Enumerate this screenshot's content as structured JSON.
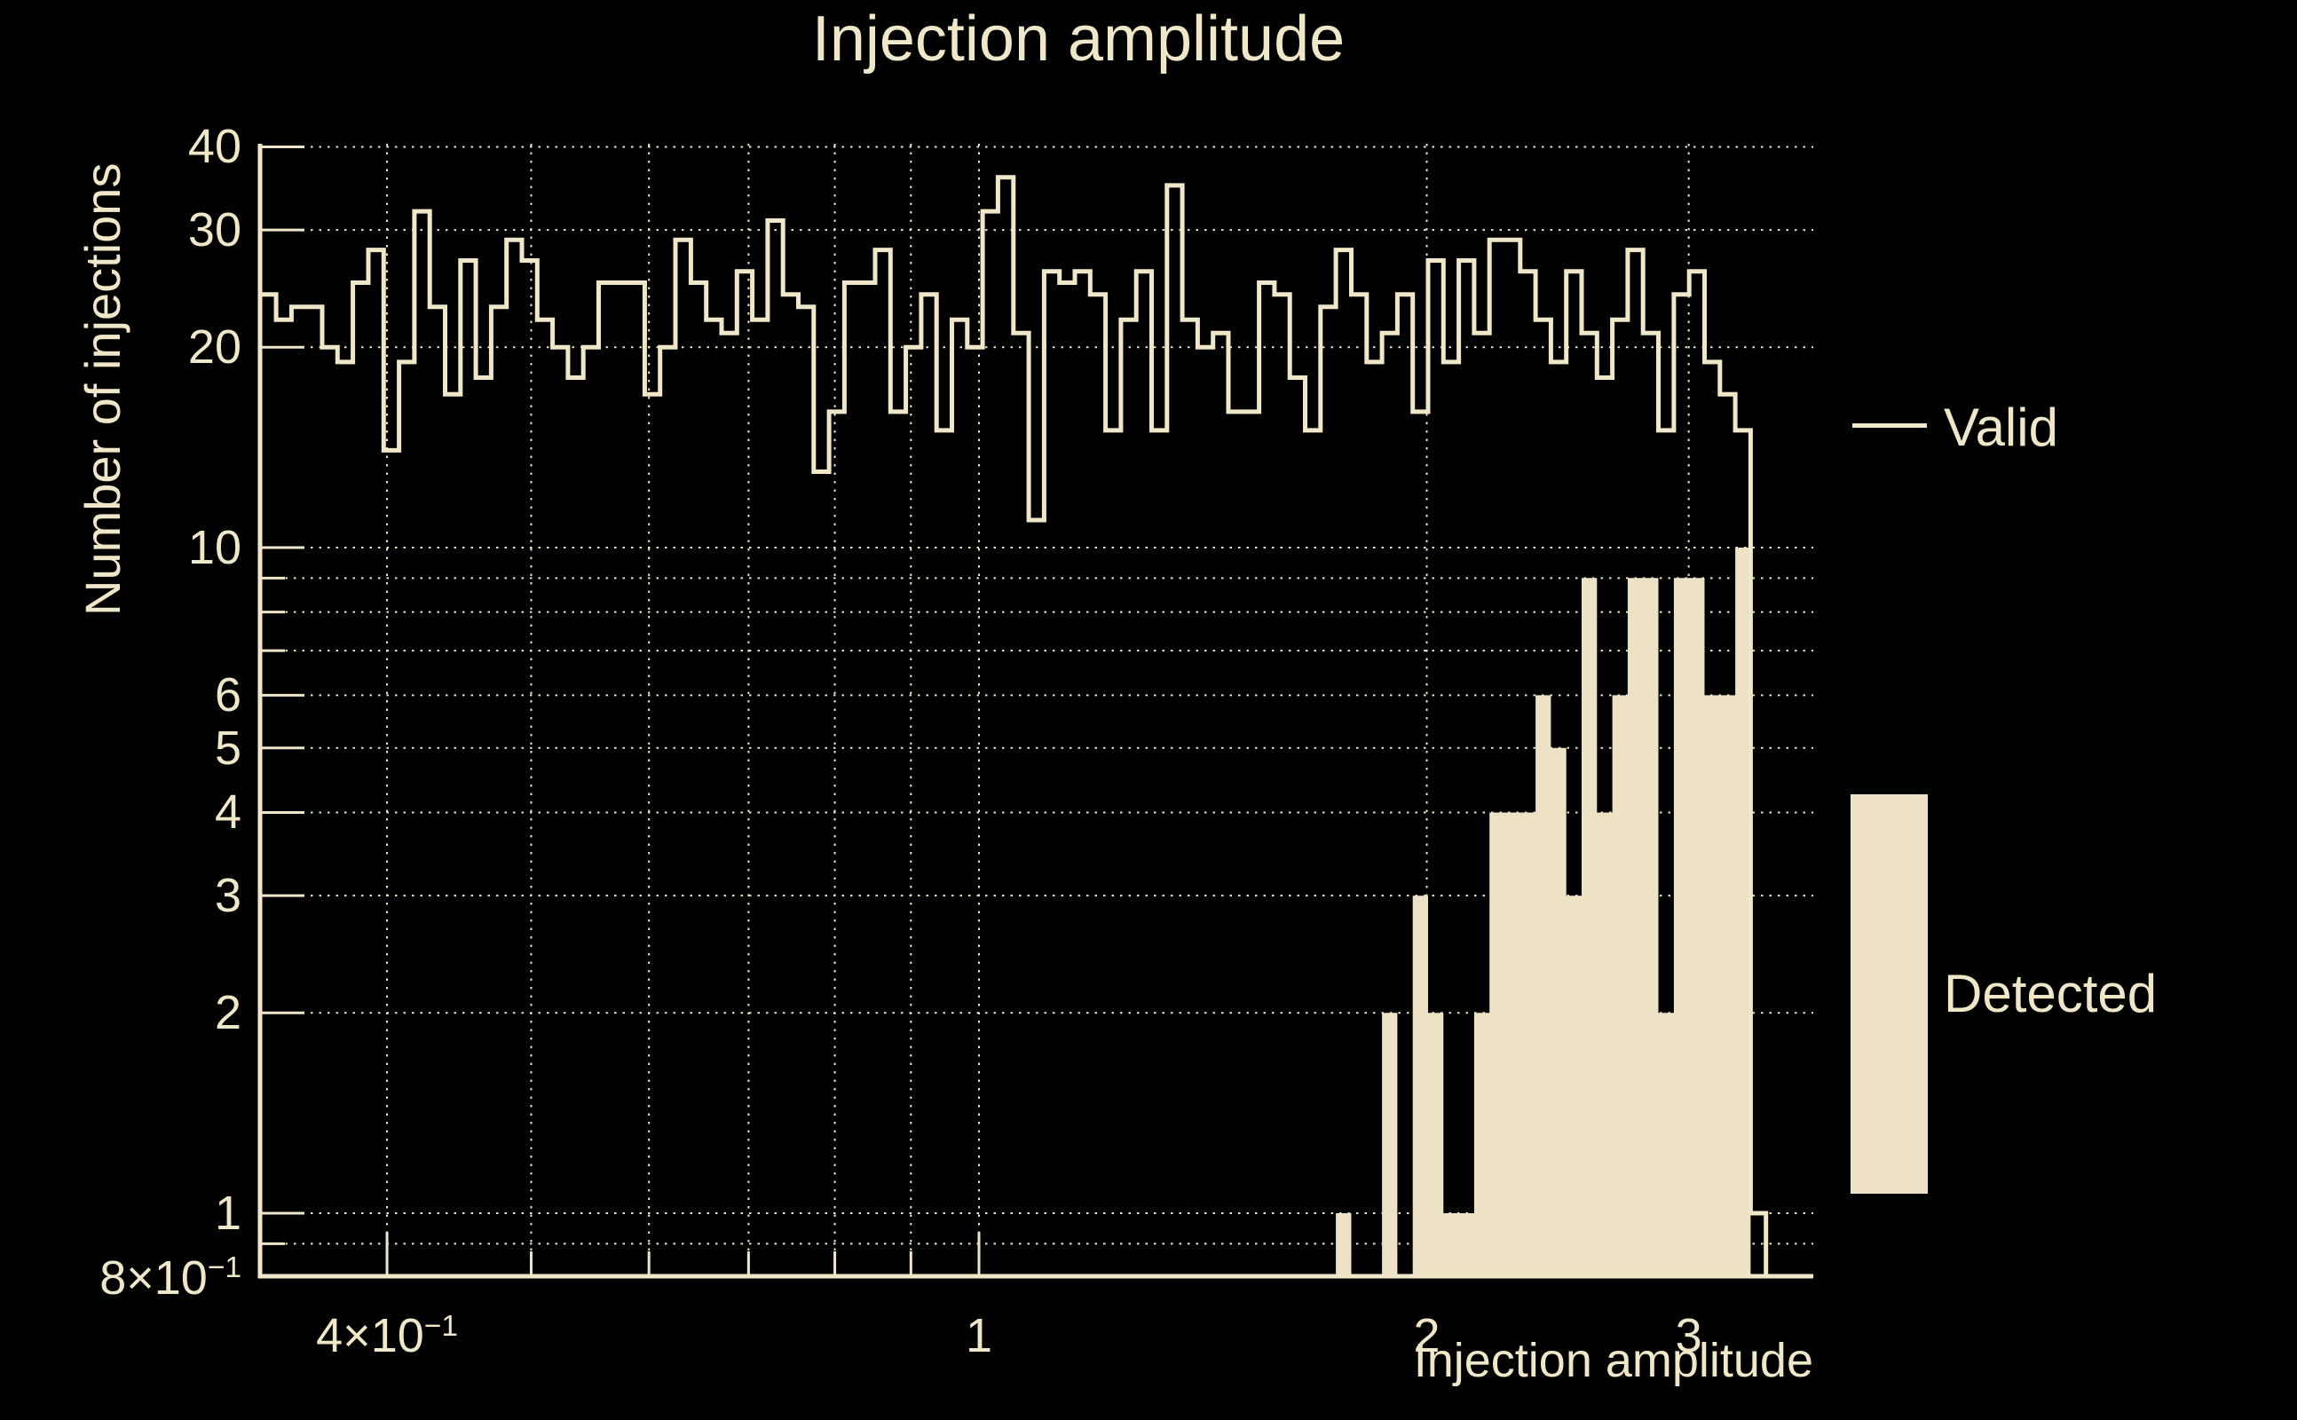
{
  "colors": {
    "background": "#000000",
    "foreground": "#f0e6c8",
    "histogram_fill": "#ede2c5"
  },
  "legend": {
    "position": "right",
    "valid_marker": "line",
    "detected_marker": "filled-box"
  },
  "chart_data": {
    "type": "bar",
    "subtype": "log-log-step-histogram",
    "title": "Injection amplitude",
    "xlabel": "Injection amplitude",
    "ylabel": "Number of injections",
    "x_scale": "log",
    "y_scale": "log",
    "xlim": [
      0.329,
      3.64
    ],
    "ylim": [
      0.8,
      40
    ],
    "grid": "dotted",
    "bins": {
      "count": 98,
      "min": 0.329,
      "max": 3.381,
      "spacing": "log"
    },
    "x_ticks": [
      {
        "value": 0.4,
        "label": "4×10^−1"
      },
      {
        "value": 1,
        "label": "1"
      },
      {
        "value": 2,
        "label": "2"
      },
      {
        "value": 3,
        "label": "3"
      }
    ],
    "x_minor_gridlines": [
      0.5,
      0.6,
      0.7,
      0.8,
      0.9
    ],
    "y_ticks": [
      {
        "value": 40,
        "label": "40"
      },
      {
        "value": 30,
        "label": "30"
      },
      {
        "value": 20,
        "label": "20"
      },
      {
        "value": 10,
        "label": "10"
      },
      {
        "value": 6,
        "label": "6"
      },
      {
        "value": 5,
        "label": "5"
      },
      {
        "value": 4,
        "label": "4"
      },
      {
        "value": 3,
        "label": "3"
      },
      {
        "value": 2,
        "label": "2"
      },
      {
        "value": 1,
        "label": "1"
      },
      {
        "value": 0.8,
        "label": "8×10^−1"
      }
    ],
    "y_minor_gridlines": [
      0.9,
      7,
      8,
      9
    ],
    "series": [
      {
        "name": "Valid",
        "style": "step-outline",
        "values": [
          24,
          22,
          23,
          23,
          20,
          19,
          25,
          28,
          14,
          19,
          32,
          23,
          17,
          27,
          18,
          23,
          29,
          27,
          22,
          20,
          18,
          20,
          25,
          25,
          25,
          17,
          20,
          29,
          25,
          22,
          21,
          26,
          22,
          31,
          24,
          23,
          13,
          16,
          25,
          25,
          28,
          16,
          20,
          24,
          15,
          22,
          20,
          32,
          36,
          21,
          11,
          26,
          25,
          26,
          24,
          15,
          22,
          26,
          15,
          35,
          22,
          20,
          21,
          16,
          16,
          25,
          24,
          18,
          15,
          23,
          28,
          24,
          19,
          21,
          24,
          16,
          27,
          19,
          27,
          21,
          29,
          29,
          26,
          22,
          19,
          26,
          21,
          18,
          22,
          28,
          21,
          15,
          24,
          26,
          19,
          17,
          15,
          1
        ]
      },
      {
        "name": "Detected",
        "style": "filled",
        "values": [
          0,
          0,
          0,
          0,
          0,
          0,
          0,
          0,
          0,
          0,
          0,
          0,
          0,
          0,
          0,
          0,
          0,
          0,
          0,
          0,
          0,
          0,
          0,
          0,
          0,
          0,
          0,
          0,
          0,
          0,
          0,
          0,
          0,
          0,
          0,
          0,
          0,
          0,
          0,
          0,
          0,
          0,
          0,
          0,
          0,
          0,
          0,
          0,
          0,
          0,
          0,
          0,
          0,
          0,
          0,
          0,
          0,
          0,
          0,
          0,
          0,
          0,
          0,
          0,
          0,
          0,
          0,
          0,
          0,
          0,
          1,
          0,
          0,
          2,
          0,
          3,
          2,
          1,
          1,
          2,
          4,
          4,
          4,
          6,
          5,
          3,
          9,
          4,
          6,
          9,
          9,
          2,
          9,
          9,
          6,
          6,
          10,
          0
        ]
      }
    ]
  }
}
